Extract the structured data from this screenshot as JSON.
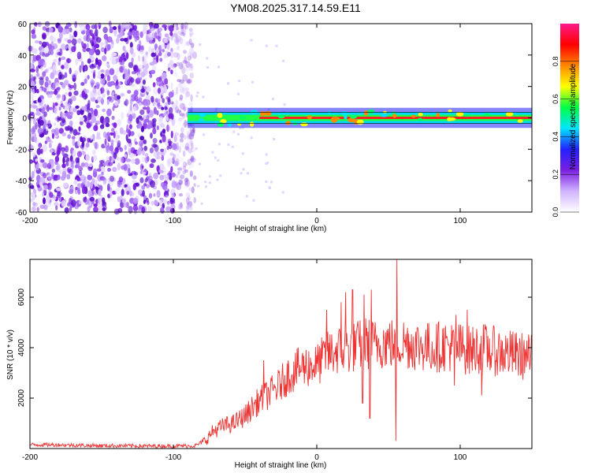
{
  "title": "YM08.2025.317.14.59.E11",
  "colors": {
    "snr_line": "#ee3333",
    "axis": "#000000",
    "background": "#ffffff"
  },
  "chart_data": [
    {
      "type": "heatmap",
      "name": "spectrogram",
      "xlabel": "Height of straight line (km)",
      "ylabel": "Frequency (Hz)",
      "xlim": [
        -200,
        150
      ],
      "ylim": [
        -60,
        60
      ],
      "xticks": [
        -200,
        -100,
        0,
        100
      ],
      "yticks": [
        -60,
        -40,
        -20,
        0,
        20,
        40,
        60
      ],
      "noise_region_x": [
        -200,
        -85
      ],
      "signal_band": {
        "x": [
          -90,
          150
        ],
        "freq_hz": 0,
        "half_width_hz": 2
      },
      "colorbar": {
        "label": "Normalized spectral amplitude",
        "range": [
          0.0,
          1.0
        ],
        "ticks": [
          0.0,
          0.2,
          0.4,
          0.6,
          0.8
        ],
        "tick_labels": [
          "0.0",
          "0.2",
          "0.4",
          "0.6",
          "0.8"
        ],
        "colormap": [
          "#ffffff",
          "#d0b3ff",
          "#7a1fe0",
          "#2222ff",
          "#00e5ff",
          "#00ff44",
          "#ffff00",
          "#ff8800",
          "#ff0000",
          "#ff1a8c"
        ]
      }
    },
    {
      "type": "line",
      "name": "snr",
      "xlabel": "Height of straight line (km)",
      "ylabel": "SNR (10 * v/v)",
      "xlim": [
        -200,
        150
      ],
      "ylim": [
        0,
        7500
      ],
      "xticks": [
        -200,
        -100,
        0,
        100
      ],
      "yticks": [
        2000,
        4000,
        6000
      ],
      "x": [
        -200,
        -180,
        -160,
        -140,
        -120,
        -100,
        -85,
        -78,
        -72,
        -65,
        -58,
        -50,
        -42,
        -35,
        -28,
        -20,
        -12,
        -5,
        0,
        5,
        10,
        15,
        20,
        25,
        30,
        35,
        40,
        45,
        50,
        55,
        58,
        62,
        70,
        80,
        90,
        95,
        100,
        105,
        110,
        115,
        120,
        130,
        140,
        150
      ],
      "y": [
        150,
        150,
        120,
        110,
        100,
        100,
        110,
        300,
        700,
        900,
        1000,
        1300,
        1800,
        2100,
        2400,
        2900,
        3200,
        3300,
        3300,
        3600,
        3800,
        3900,
        3900,
        4000,
        4100,
        4200,
        4100,
        4200,
        4200,
        4100,
        4200,
        4200,
        4100,
        4000,
        4100,
        4000,
        4000,
        3900,
        3900,
        4000,
        3900,
        3800,
        3700,
        3600
      ],
      "spikes": [
        {
          "x": -37,
          "y": 3500
        },
        {
          "x": -15,
          "y": 3800
        },
        {
          "x": 7,
          "y": 5500
        },
        {
          "x": 17,
          "y": 5800
        },
        {
          "x": 20,
          "y": 6200
        },
        {
          "x": 25,
          "y": 6300
        },
        {
          "x": 33,
          "y": 6100
        },
        {
          "x": 38,
          "y": 6300
        },
        {
          "x": 56,
          "y": 7500
        },
        {
          "x": 97,
          "y": 5300
        },
        {
          "x": 105,
          "y": 5500
        }
      ],
      "dips": [
        {
          "x": 55,
          "y": 300
        },
        {
          "x": 37,
          "y": 1200
        },
        {
          "x": 32,
          "y": 1800
        },
        {
          "x": 96,
          "y": 2500
        },
        {
          "x": 115,
          "y": 2100
        }
      ]
    }
  ]
}
